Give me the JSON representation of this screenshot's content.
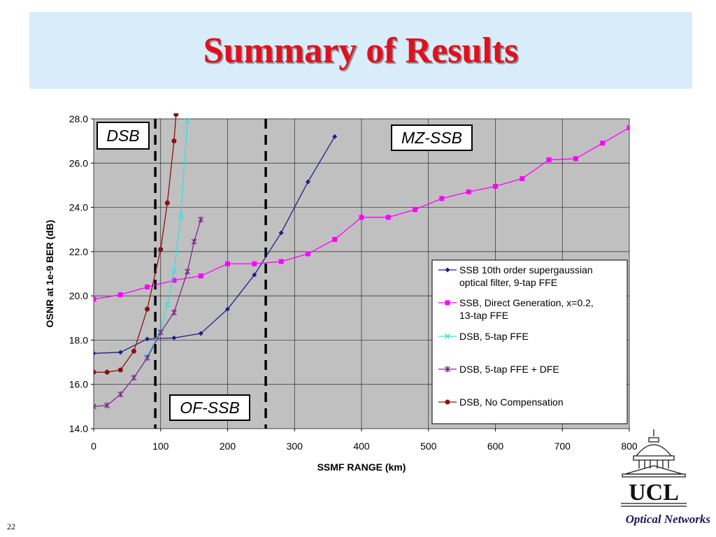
{
  "slide": {
    "title": "Summary of Results",
    "page_number": "22",
    "footer_label": "Optical Networks",
    "logo_text": "UCL"
  },
  "colors": {
    "title": "#e0101e",
    "title_box": "#d9ecfa",
    "plot_background": "#c0c0c0"
  },
  "chart_data": {
    "type": "line",
    "xlabel": "SSMF RANGE (km)",
    "ylabel": "OSNR at 1e-9 BER (dB)",
    "xlim": [
      0,
      800
    ],
    "ylim": [
      14,
      28
    ],
    "x_ticks": [
      "0",
      "100",
      "200",
      "300",
      "400",
      "500",
      "600",
      "700",
      "800"
    ],
    "y_ticks": [
      "14.0",
      "16.0",
      "18.0",
      "20.0",
      "22.0",
      "24.0",
      "26.0",
      "28.0"
    ],
    "grid": "horizontal and vertical",
    "legend_position": "right",
    "annotations": [
      {
        "label": "DSB",
        "anchor": "top-left"
      },
      {
        "label": "MZ-SSB",
        "anchor": "top-right"
      },
      {
        "label": "OF-SSB",
        "anchor": "bottom-center"
      }
    ],
    "boundaries_km": [
      92,
      257
    ],
    "series": [
      {
        "name": "SSB 10th order supergaussian optical filter, 9-tap FFE",
        "color": "#1f1f8a",
        "marker": "diamond",
        "points": [
          [
            0,
            17.4
          ],
          [
            40,
            17.45
          ],
          [
            80,
            18.05
          ],
          [
            120,
            18.1
          ],
          [
            160,
            18.3
          ],
          [
            200,
            19.4
          ],
          [
            240,
            20.95
          ],
          [
            280,
            22.85
          ],
          [
            320,
            25.15
          ],
          [
            360,
            27.2
          ]
        ]
      },
      {
        "name": "SSB, Direct Generation, x=0.2, 13-tap FFE",
        "color": "#ff00ff",
        "marker": "square",
        "points": [
          [
            0,
            19.85
          ],
          [
            40,
            20.05
          ],
          [
            80,
            20.4
          ],
          [
            120,
            20.7
          ],
          [
            160,
            20.9
          ],
          [
            200,
            21.45
          ],
          [
            240,
            21.45
          ],
          [
            280,
            21.55
          ],
          [
            320,
            21.9
          ],
          [
            360,
            22.55
          ],
          [
            400,
            23.55
          ],
          [
            440,
            23.55
          ],
          [
            480,
            23.9
          ],
          [
            520,
            24.4
          ],
          [
            560,
            24.7
          ],
          [
            600,
            24.95
          ],
          [
            640,
            25.3
          ],
          [
            680,
            26.15
          ],
          [
            720,
            26.2
          ],
          [
            760,
            26.9
          ],
          [
            800,
            27.6
          ]
        ]
      },
      {
        "name": "DSB, 5-tap FFE",
        "color": "#33e0e0",
        "marker": "x",
        "points": [
          [
            80,
            17.3
          ],
          [
            100,
            18.4
          ],
          [
            110,
            19.6
          ],
          [
            120,
            21.1
          ],
          [
            130,
            23.6
          ],
          [
            140,
            27.9
          ]
        ]
      },
      {
        "name": "DSB, 5-tap FFE + DFE",
        "color": "#7a2a8a",
        "marker": "star",
        "points": [
          [
            0,
            15.0
          ],
          [
            20,
            15.05
          ],
          [
            40,
            15.55
          ],
          [
            60,
            16.3
          ],
          [
            80,
            17.2
          ],
          [
            100,
            18.35
          ],
          [
            120,
            19.25
          ],
          [
            140,
            21.1
          ],
          [
            150,
            22.45
          ],
          [
            160,
            23.45
          ]
        ]
      },
      {
        "name": "DSB, No Compensation",
        "color": "#8b1010",
        "marker": "circle",
        "points": [
          [
            0,
            16.55
          ],
          [
            20,
            16.55
          ],
          [
            40,
            16.65
          ],
          [
            60,
            17.5
          ],
          [
            80,
            19.4
          ],
          [
            100,
            22.1
          ],
          [
            110,
            24.2
          ],
          [
            120,
            27.0
          ],
          [
            123,
            28.2
          ]
        ]
      }
    ],
    "legend": [
      {
        "line1": "SSB 10th order supergaussian",
        "line2": "optical filter, 9-tap FFE"
      },
      {
        "line1": "SSB, Direct Generation, x=0.2,",
        "line2": "13-tap FFE"
      },
      {
        "line1": "DSB, 5-tap FFE",
        "line2": ""
      },
      {
        "line1": "DSB, 5-tap FFE + DFE",
        "line2": ""
      },
      {
        "line1": "DSB, No Compensation",
        "line2": ""
      }
    ]
  }
}
